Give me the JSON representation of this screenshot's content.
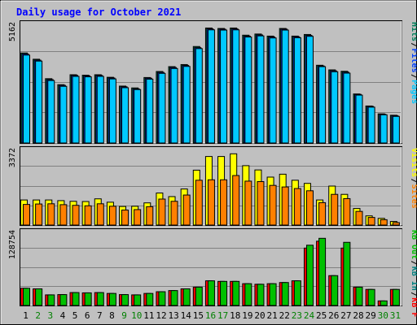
{
  "title": "Daily usage for October 2021",
  "colors": {
    "frame_bg": "#c0c0c0",
    "plot_bg": "#c0c0c0",
    "title": "#0000ff",
    "hits": "#00805c",
    "files": "#0040ff",
    "pages": "#00c8ff",
    "visits": "#ffff00",
    "sites": "#ff8000",
    "kb_in": "#008080",
    "kb_out": "#00c000",
    "kb_f": "#ff0000",
    "weekend_day": "#008000",
    "weekday": "#000000"
  },
  "chart_data": {
    "type": "bar",
    "title": "Daily usage for October 2021",
    "x": [
      "1",
      "2",
      "3",
      "4",
      "5",
      "6",
      "7",
      "8",
      "9",
      "10",
      "11",
      "12",
      "13",
      "14",
      "15",
      "16",
      "17",
      "18",
      "19",
      "20",
      "21",
      "22",
      "23",
      "24",
      "25",
      "26",
      "27",
      "28",
      "29",
      "30",
      "31"
    ],
    "weekend_days": [
      "2",
      "3",
      "9",
      "10",
      "16",
      "17",
      "23",
      "24",
      "30",
      "31"
    ],
    "panels": [
      {
        "name": "hits",
        "ylabel_max": "5162",
        "ymax": 5162,
        "legend": [
          {
            "label": "Pages",
            "color_key": "pages"
          },
          {
            "label": "Files",
            "color_key": "files"
          },
          {
            "label": "Hits",
            "color_key": "hits"
          }
        ],
        "series": [
          {
            "name": "Hits",
            "values": [
              3890,
              3620,
              2780,
              2520,
              2950,
              2930,
              2950,
              2840,
              2460,
              2380,
              2830,
              3090,
              3300,
              3390,
              4170,
              4970,
              4950,
              4970,
              4660,
              4710,
              4620,
              4950,
              4620,
              4690,
              3360,
              3160,
              3100,
              2120,
              1600,
              1260,
              1200
            ]
          },
          {
            "name": "Files",
            "values": [
              3850,
              3580,
              2740,
              2490,
              2920,
              2900,
              2920,
              2810,
              2430,
              2340,
              2800,
              3050,
              3260,
              3350,
              4120,
              4930,
              4920,
              4930,
              4620,
              4670,
              4580,
              4920,
              4590,
              4650,
              3330,
              3120,
              3060,
              2100,
              1580,
              1240,
              1180
            ]
          },
          {
            "name": "Pages",
            "values": [
              3800,
              3540,
              2700,
              2450,
              2880,
              2860,
              2880,
              2770,
              2390,
              2310,
              2760,
              3010,
              3220,
              3310,
              4080,
              4890,
              4880,
              4890,
              4580,
              4630,
              4540,
              4880,
              4550,
              4610,
              3300,
              3080,
              3020,
              2070,
              1550,
              1220,
              1150
            ]
          }
        ]
      },
      {
        "name": "visits",
        "ylabel_max": "3372",
        "ymax": 3372,
        "legend": [
          {
            "label": "Sites",
            "color_key": "sites"
          },
          {
            "label": "Visits",
            "color_key": "visits"
          }
        ],
        "series": [
          {
            "name": "Visits",
            "values": [
              1120,
              1120,
              1120,
              1090,
              1060,
              1050,
              1170,
              1020,
              830,
              840,
              990,
              1430,
              1270,
              1610,
              2450,
              3060,
              3060,
              3180,
              2650,
              2460,
              2140,
              2270,
              2000,
              1860,
              1120,
              1740,
              1370,
              740,
              410,
              300,
              160
            ]
          },
          {
            "name": "Sites",
            "values": [
              920,
              940,
              950,
              910,
              880,
              860,
              950,
              840,
              670,
              690,
              820,
              1160,
              1060,
              1340,
              2000,
              2020,
              2020,
              2210,
              1960,
              1940,
              1770,
              1700,
              1630,
              1530,
              1000,
              1370,
              1180,
              610,
              340,
              240,
              110
            ]
          }
        ]
      },
      {
        "name": "kbytes",
        "ylabel_max": "128754",
        "ymax": 128754,
        "legend": [
          {
            "label": "KB F",
            "color_key": "kb_f"
          },
          {
            "label": "KB In",
            "color_key": "kb_in"
          },
          {
            "label": "KB Out",
            "color_key": "kb_out"
          }
        ],
        "series": [
          {
            "name": "KB F",
            "values": [
              30000,
              29000,
              18500,
              19000,
              22500,
              22000,
              22500,
              21000,
              19000,
              18500,
              21000,
              24000,
              26000,
              29000,
              32000,
              43000,
              42000,
              42000,
              38000,
              37000,
              38000,
              40000,
              43000,
              100000,
              112000,
              52000,
              100000,
              32000,
              28000,
              8000,
              28000
            ]
          },
          {
            "name": "KB Out",
            "values": [
              30000,
              29000,
              18500,
              19000,
              22500,
              22000,
              22500,
              21000,
              19000,
              18500,
              21000,
              24000,
              26000,
              29000,
              32000,
              43000,
              42000,
              42000,
              38000,
              37000,
              38000,
              40000,
              43000,
              105000,
              117000,
              52000,
              110000,
              32000,
              28000,
              8000,
              28000
            ]
          }
        ]
      }
    ]
  }
}
